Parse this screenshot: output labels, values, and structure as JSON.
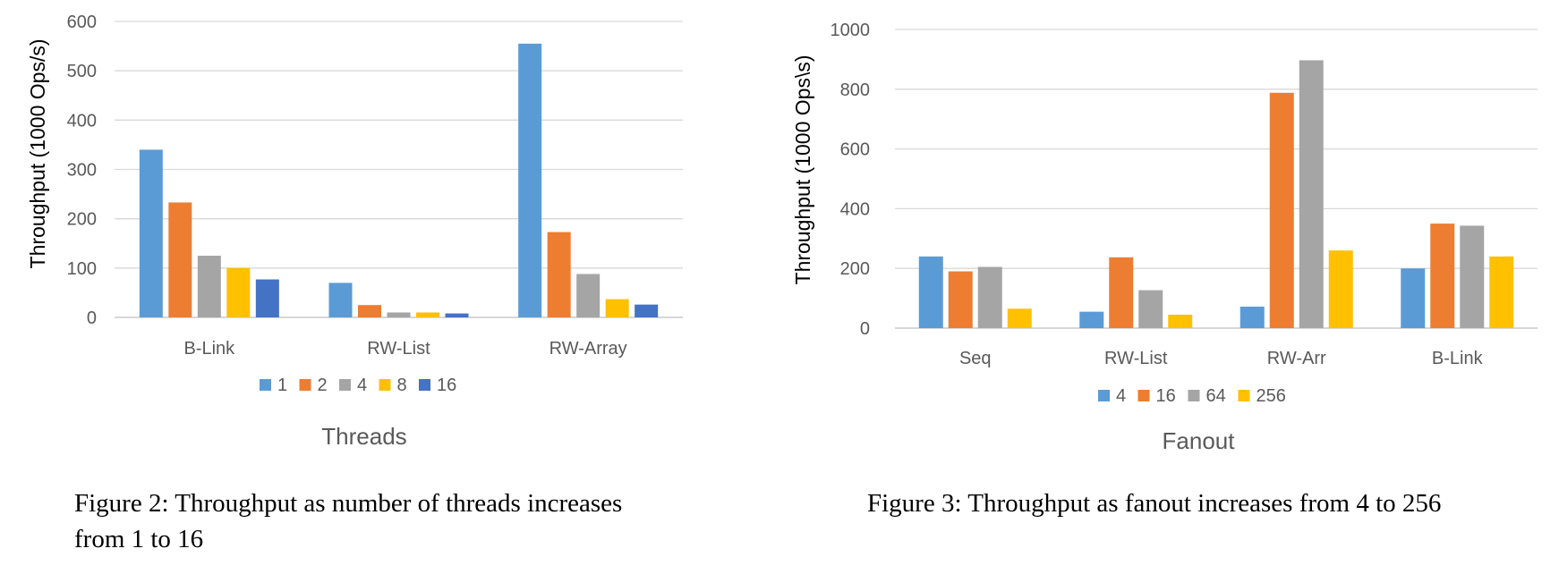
{
  "chart_data": [
    {
      "type": "bar",
      "ylabel": "Throughput (1000  Ops/s)",
      "xlabel": "Threads",
      "categories": [
        "B-Link",
        "RW-List",
        "RW-Array"
      ],
      "series": [
        {
          "name": "1",
          "color": "#5B9BD5",
          "values": [
            340,
            70,
            555
          ]
        },
        {
          "name": "2",
          "color": "#ED7D31",
          "values": [
            233,
            25,
            173
          ]
        },
        {
          "name": "4",
          "color": "#A5A5A5",
          "values": [
            125,
            10,
            88
          ]
        },
        {
          "name": "8",
          "color": "#FFC000",
          "values": [
            100,
            10,
            37
          ]
        },
        {
          "name": "16",
          "color": "#4472C4",
          "values": [
            77,
            8,
            26
          ]
        }
      ],
      "ylim": [
        0,
        600
      ],
      "yticks": [
        0,
        100,
        200,
        300,
        400,
        500,
        600
      ],
      "grid": true,
      "legend": "bottom",
      "caption_lines": [
        "Figure 2: Throughput as number of threads increases",
        "from 1 to 16"
      ]
    },
    {
      "type": "bar",
      "ylabel": "Throughput (1000 Ops\\s)",
      "xlabel": "Fanout",
      "categories": [
        "Seq",
        "RW-List",
        "RW-Arr",
        "B-Link"
      ],
      "series": [
        {
          "name": "4",
          "color": "#5B9BD5",
          "values": [
            240,
            55,
            72,
            200
          ]
        },
        {
          "name": "16",
          "color": "#ED7D31",
          "values": [
            190,
            237,
            788,
            350
          ]
        },
        {
          "name": "64",
          "color": "#A5A5A5",
          "values": [
            205,
            127,
            897,
            343
          ]
        },
        {
          "name": "256",
          "color": "#FFC000",
          "values": [
            65,
            45,
            260,
            240
          ]
        }
      ],
      "ylim": [
        0,
        1000
      ],
      "yticks": [
        0,
        200,
        400,
        600,
        800,
        1000
      ],
      "grid": true,
      "legend": "bottom",
      "caption_lines": [
        "Figure 3: Throughput as fanout increases from 4 to 256"
      ]
    }
  ]
}
